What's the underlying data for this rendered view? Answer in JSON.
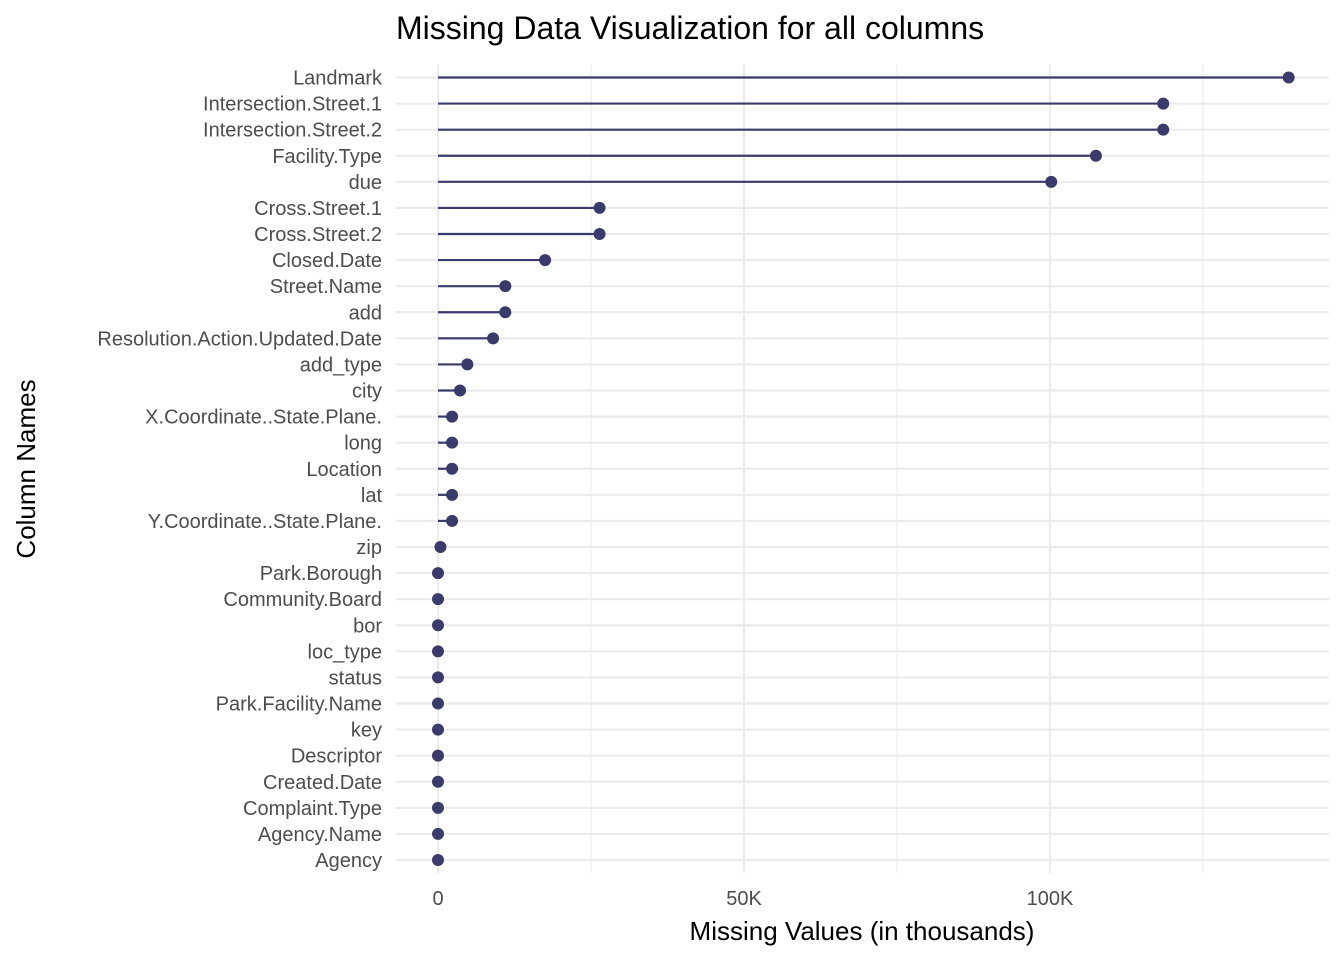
{
  "chart_data": {
    "type": "lollipop",
    "title": "Missing Data Visualization for all columns",
    "xlabel": "Missing Values (in thousands)",
    "ylabel": "Column Names",
    "xlim": [
      0,
      145000
    ],
    "x_ticks": [
      {
        "value": 0,
        "label": "0"
      },
      {
        "value": 50000,
        "label": "50K"
      },
      {
        "value": 100000,
        "label": "100K"
      }
    ],
    "x_minor_ticks": [
      25000,
      75000,
      125000
    ],
    "grid": true,
    "legend": "none",
    "color": "#3b3b6b",
    "categories": [
      "Landmark",
      "Intersection.Street.1",
      "Intersection.Street.2",
      "Facility.Type",
      "due",
      "Cross.Street.1",
      "Cross.Street.2",
      "Closed.Date",
      "Street.Name",
      "add",
      "Resolution.Action.Updated.Date",
      "add_type",
      "city",
      "X.Coordinate..State.Plane.",
      "long",
      "Location",
      "lat",
      "Y.Coordinate..State.Plane.",
      "zip",
      "Park.Borough",
      "Community.Board",
      "bor",
      "loc_type",
      "status",
      "Park.Facility.Name",
      "key",
      "Descriptor",
      "Created.Date",
      "Complaint.Type",
      "Agency.Name",
      "Agency"
    ],
    "values": [
      139000,
      118500,
      118500,
      107500,
      100200,
      26400,
      26400,
      17500,
      11000,
      11000,
      9000,
      4800,
      3600,
      2300,
      2300,
      2300,
      2300,
      2300,
      400,
      0,
      0,
      0,
      0,
      0,
      0,
      0,
      0,
      0,
      0,
      0,
      0
    ]
  }
}
